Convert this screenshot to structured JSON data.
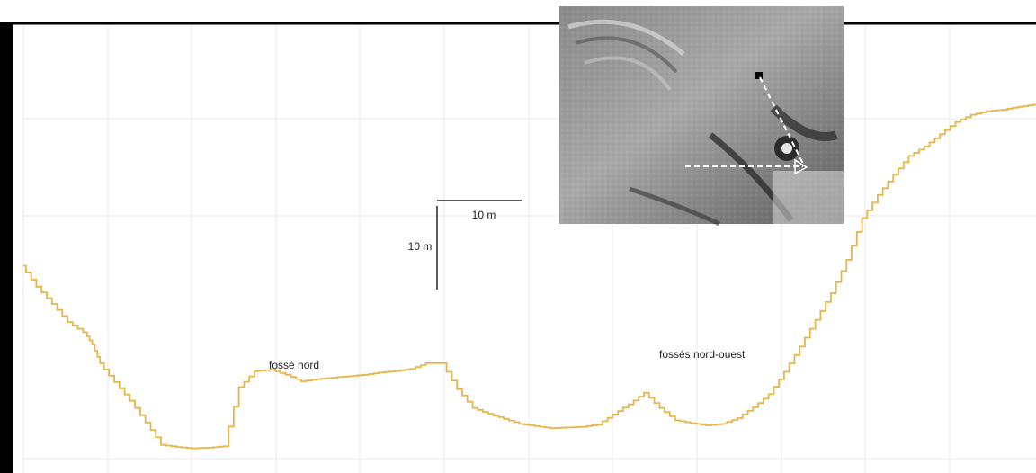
{
  "chart_data": {
    "type": "line",
    "title": "",
    "xlabel": "",
    "ylabel": "",
    "grid": true,
    "line_color": "#e5b64a",
    "grid_color": "#e8e8e8",
    "frame_color": "#000000",
    "annotations": {
      "north_ditch": "fossé nord",
      "northwest_ditches": "fossés nord-ouest"
    },
    "scale_bar": {
      "horizontal_label": "10 m",
      "vertical_label": "10 m"
    },
    "inset": {
      "description_icon": "relief-map-inset-icon"
    },
    "series": [
      {
        "x": [
          0,
          2,
          4,
          6,
          8,
          9,
          10,
          12,
          14,
          16,
          18,
          20,
          22,
          24,
          26,
          28,
          30,
          32,
          34,
          36,
          38,
          40,
          42,
          44,
          46,
          48,
          50,
          52,
          54,
          56,
          58,
          60,
          62,
          64,
          66,
          68,
          70,
          72,
          74,
          76,
          78,
          80,
          82,
          84,
          86,
          88,
          90,
          92,
          94,
          96,
          98,
          100,
          102,
          104,
          106,
          108,
          110,
          112,
          114,
          116,
          118,
          120,
          122,
          124,
          126,
          128,
          130
        ],
        "y": [
          25.7,
          22.8,
          20.4,
          17.9,
          16.5,
          14.8,
          12.2,
          9.6,
          7.0,
          4.0,
          0.9,
          0.6,
          0.4,
          0.5,
          0.7,
          8.9,
          11.1,
          11.3,
          10.6,
          9.7,
          10.0,
          10.2,
          10.4,
          10.6,
          10.9,
          11.1,
          11.4,
          12.2,
          12.2,
          8.6,
          6.0,
          5.2,
          4.5,
          3.8,
          3.5,
          3.2,
          3.3,
          3.4,
          3.7,
          5.1,
          6.5,
          8.1,
          6.0,
          4.3,
          3.9,
          3.6,
          3.8,
          4.6,
          6.1,
          7.9,
          11.0,
          14.5,
          18.2,
          21.9,
          26.5,
          32.3,
          35.5,
          38.3,
          40.9,
          42.2,
          43.9,
          45.6,
          46.6,
          47.1,
          47.3,
          47.7,
          48.0
        ]
      }
    ]
  }
}
